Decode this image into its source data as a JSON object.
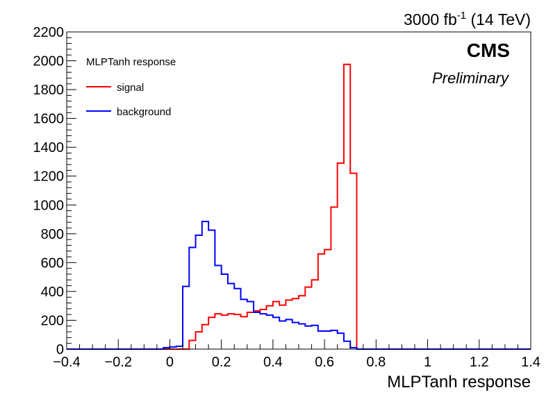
{
  "chart_data": {
    "type": "histogram",
    "title": "",
    "xlabel": "MLPTanh response",
    "ylabel": "",
    "xlim": [
      -0.4,
      1.4
    ],
    "ylim": [
      0,
      2200
    ],
    "bin_width": 0.025,
    "x_ticks": [
      -0.4,
      -0.2,
      0,
      0.2,
      0.4,
      0.6,
      0.8,
      1,
      1.2,
      1.4
    ],
    "x_tick_labels": [
      "−0.4",
      "−0.2",
      "0",
      "0.2",
      "0.4",
      "0.6",
      "0.8",
      "1",
      "1.2",
      "1.4"
    ],
    "y_ticks": [
      0,
      200,
      400,
      600,
      800,
      1000,
      1200,
      1400,
      1600,
      1800,
      2000,
      2200
    ],
    "y_tick_labels": [
      "0",
      "200",
      "400",
      "600",
      "800",
      "1000",
      "1200",
      "1400",
      "1600",
      "1800",
      "2000",
      "2200"
    ],
    "luminosity_label": "3000 fb",
    "luminosity_exponent": "-1",
    "energy_label": " (14 TeV)",
    "experiment_label": "CMS",
    "status_label": "Preliminary",
    "legend": {
      "header": "MLPTanh response",
      "placement": "top-left"
    },
    "grid": false,
    "series": [
      {
        "name": "signal",
        "color": "#ff0000",
        "bins": [
          [
            -0.4,
            0
          ],
          [
            -0.375,
            0
          ],
          [
            -0.35,
            0
          ],
          [
            -0.325,
            0
          ],
          [
            -0.3,
            0
          ],
          [
            -0.275,
            0
          ],
          [
            -0.25,
            0
          ],
          [
            -0.225,
            0
          ],
          [
            -0.2,
            0
          ],
          [
            -0.175,
            0
          ],
          [
            -0.15,
            0
          ],
          [
            -0.125,
            0
          ],
          [
            -0.1,
            0
          ],
          [
            -0.075,
            0
          ],
          [
            -0.05,
            0
          ],
          [
            -0.025,
            0
          ],
          [
            0,
            0
          ],
          [
            0.025,
            0
          ],
          [
            0.05,
            0
          ],
          [
            0.075,
            60
          ],
          [
            0.1,
            120
          ],
          [
            0.125,
            170
          ],
          [
            0.15,
            220
          ],
          [
            0.175,
            245
          ],
          [
            0.2,
            235
          ],
          [
            0.225,
            245
          ],
          [
            0.25,
            240
          ],
          [
            0.275,
            225
          ],
          [
            0.3,
            255
          ],
          [
            0.325,
            265
          ],
          [
            0.35,
            275
          ],
          [
            0.375,
            300
          ],
          [
            0.4,
            330
          ],
          [
            0.425,
            305
          ],
          [
            0.45,
            340
          ],
          [
            0.475,
            350
          ],
          [
            0.5,
            370
          ],
          [
            0.525,
            430
          ],
          [
            0.55,
            480
          ],
          [
            0.575,
            660
          ],
          [
            0.6,
            690
          ],
          [
            0.625,
            985
          ],
          [
            0.65,
            1290
          ],
          [
            0.675,
            1975
          ],
          [
            0.7,
            1220
          ],
          [
            0.725,
            0
          ],
          [
            0.75,
            0
          ],
          [
            0.775,
            0
          ],
          [
            0.8,
            0
          ],
          [
            0.825,
            0
          ],
          [
            0.85,
            0
          ],
          [
            0.875,
            0
          ],
          [
            0.9,
            0
          ],
          [
            0.925,
            0
          ],
          [
            0.95,
            0
          ],
          [
            0.975,
            0
          ],
          [
            1,
            0
          ],
          [
            1.025,
            0
          ],
          [
            1.05,
            0
          ],
          [
            1.075,
            0
          ],
          [
            1.1,
            0
          ],
          [
            1.125,
            0
          ],
          [
            1.15,
            0
          ],
          [
            1.175,
            0
          ],
          [
            1.2,
            0
          ],
          [
            1.225,
            0
          ],
          [
            1.25,
            0
          ],
          [
            1.275,
            0
          ],
          [
            1.3,
            0
          ],
          [
            1.325,
            0
          ],
          [
            1.35,
            0
          ],
          [
            1.375,
            0
          ]
        ]
      },
      {
        "name": "background",
        "color": "#0000ff",
        "bins": [
          [
            -0.4,
            0
          ],
          [
            -0.375,
            0
          ],
          [
            -0.35,
            0
          ],
          [
            -0.325,
            0
          ],
          [
            -0.3,
            0
          ],
          [
            -0.275,
            0
          ],
          [
            -0.25,
            0
          ],
          [
            -0.225,
            0
          ],
          [
            -0.2,
            0
          ],
          [
            -0.175,
            0
          ],
          [
            -0.15,
            0
          ],
          [
            -0.125,
            0
          ],
          [
            -0.1,
            0
          ],
          [
            -0.075,
            0
          ],
          [
            -0.05,
            0
          ],
          [
            -0.025,
            10
          ],
          [
            0,
            15
          ],
          [
            0.025,
            20
          ],
          [
            0.05,
            435
          ],
          [
            0.075,
            705
          ],
          [
            0.1,
            790
          ],
          [
            0.125,
            885
          ],
          [
            0.15,
            825
          ],
          [
            0.175,
            580
          ],
          [
            0.2,
            520
          ],
          [
            0.225,
            455
          ],
          [
            0.25,
            420
          ],
          [
            0.275,
            345
          ],
          [
            0.3,
            330
          ],
          [
            0.325,
            255
          ],
          [
            0.35,
            245
          ],
          [
            0.375,
            235
          ],
          [
            0.4,
            220
          ],
          [
            0.425,
            195
          ],
          [
            0.45,
            205
          ],
          [
            0.475,
            185
          ],
          [
            0.5,
            175
          ],
          [
            0.525,
            160
          ],
          [
            0.55,
            165
          ],
          [
            0.575,
            125
          ],
          [
            0.6,
            125
          ],
          [
            0.625,
            130
          ],
          [
            0.65,
            110
          ],
          [
            0.675,
            55
          ],
          [
            0.7,
            10
          ],
          [
            0.725,
            0
          ],
          [
            0.75,
            0
          ],
          [
            0.775,
            0
          ],
          [
            0.8,
            0
          ],
          [
            0.825,
            0
          ],
          [
            0.85,
            0
          ],
          [
            0.875,
            0
          ],
          [
            0.9,
            0
          ],
          [
            0.925,
            0
          ],
          [
            0.95,
            0
          ],
          [
            0.975,
            0
          ],
          [
            1,
            0
          ],
          [
            1.025,
            0
          ],
          [
            1.05,
            0
          ],
          [
            1.075,
            0
          ],
          [
            1.1,
            0
          ],
          [
            1.125,
            0
          ],
          [
            1.15,
            0
          ],
          [
            1.175,
            0
          ],
          [
            1.2,
            0
          ],
          [
            1.225,
            0
          ],
          [
            1.25,
            0
          ],
          [
            1.275,
            0
          ],
          [
            1.3,
            0
          ],
          [
            1.325,
            0
          ],
          [
            1.35,
            0
          ],
          [
            1.375,
            0
          ]
        ]
      }
    ]
  }
}
